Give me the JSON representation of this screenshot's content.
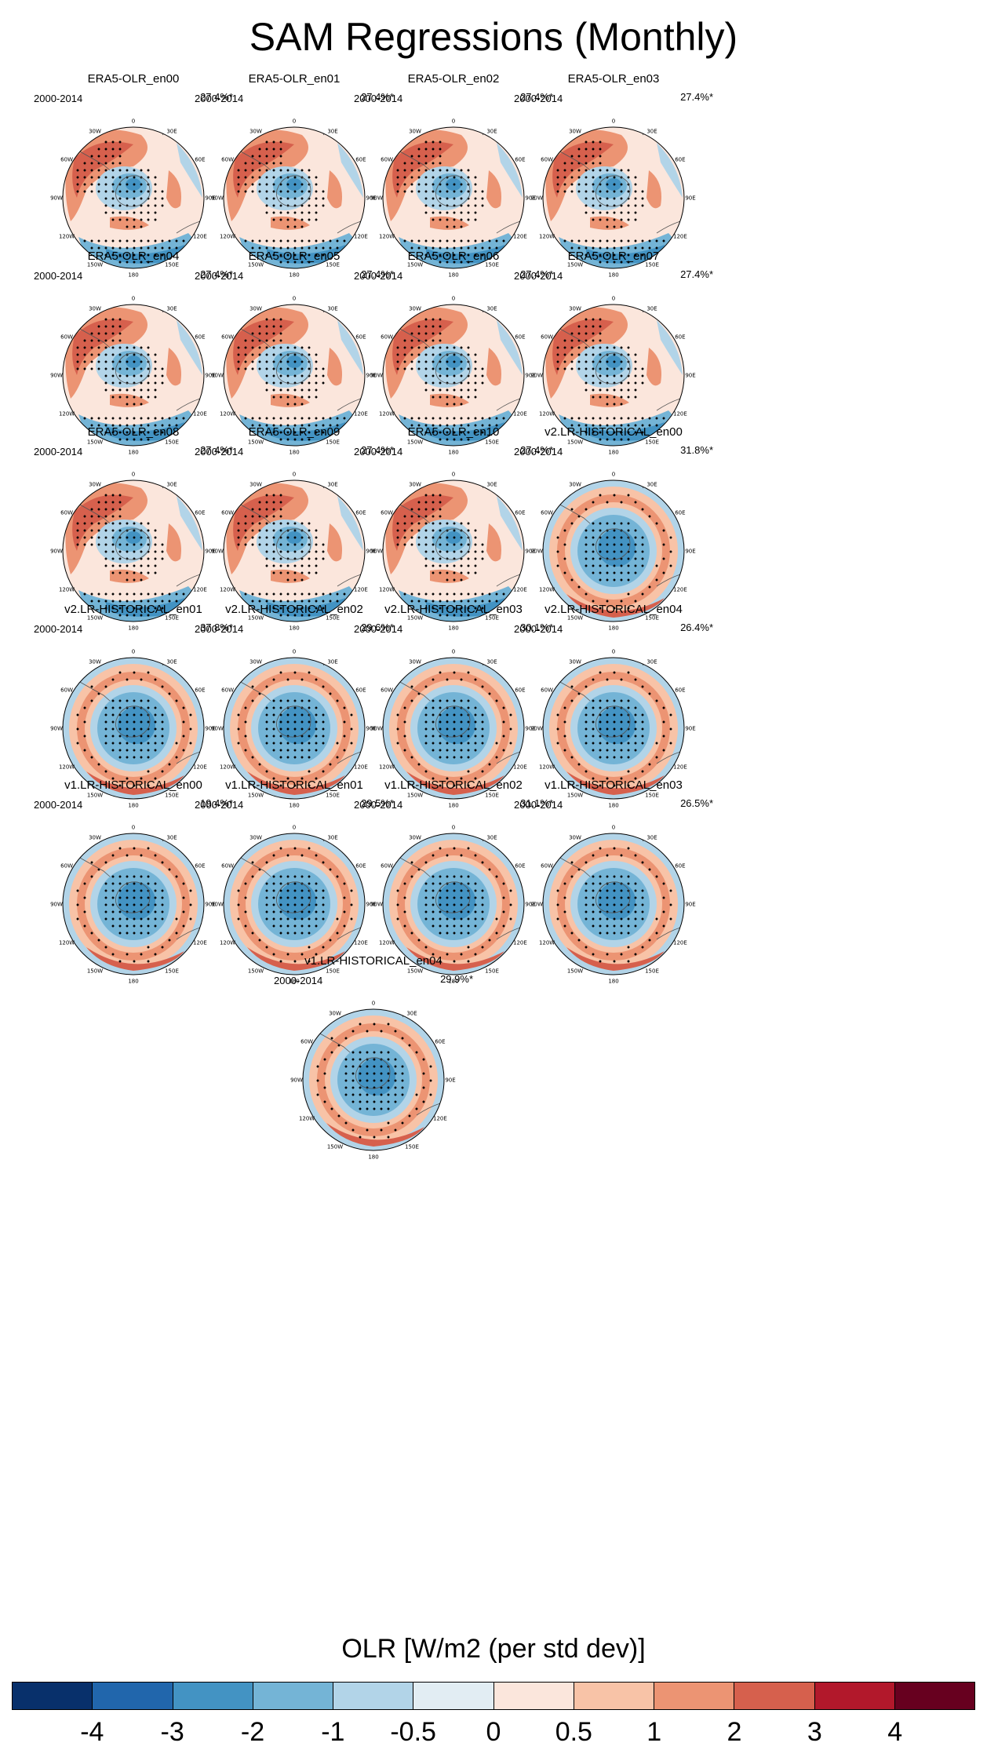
{
  "title": "SAM Regressions (Monthly)",
  "panels": [
    {
      "title": "ERA5-OLR_en00",
      "years": "2000-2014",
      "pct": "27.4%*",
      "model": "era5"
    },
    {
      "title": "ERA5-OLR_en01",
      "years": "2000-2014",
      "pct": "27.4%*",
      "model": "era5"
    },
    {
      "title": "ERA5-OLR_en02",
      "years": "2000-2014",
      "pct": "27.4%*",
      "model": "era5"
    },
    {
      "title": "ERA5-OLR_en03",
      "years": "2000-2014",
      "pct": "27.4%*",
      "model": "era5"
    },
    {
      "title": "ERA5-OLR_en04",
      "years": "2000-2014",
      "pct": "27.4%*",
      "model": "era5"
    },
    {
      "title": "ERA5-OLR_en05",
      "years": "2000-2014",
      "pct": "27.4%*",
      "model": "era5"
    },
    {
      "title": "ERA5-OLR_en06",
      "years": "2000-2014",
      "pct": "27.4%*",
      "model": "era5"
    },
    {
      "title": "ERA5-OLR_en07",
      "years": "2000-2014",
      "pct": "27.4%*",
      "model": "era5"
    },
    {
      "title": "ERA5-OLR_en08",
      "years": "2000-2014",
      "pct": "27.4%*",
      "model": "era5"
    },
    {
      "title": "ERA5-OLR_en09",
      "years": "2000-2014",
      "pct": "27.4%*",
      "model": "era5"
    },
    {
      "title": "ERA5-OLR_en10",
      "years": "2000-2014",
      "pct": "27.4%*",
      "model": "era5"
    },
    {
      "title": "v2.LR-HISTORICAL_en00",
      "years": "2000-2014",
      "pct": "31.8%*",
      "model": "model"
    },
    {
      "title": "v2.LR-HISTORICAL_en01",
      "years": "2000-2014",
      "pct": "37.8%*",
      "model": "model"
    },
    {
      "title": "v2.LR-HISTORICAL_en02",
      "years": "2000-2014",
      "pct": "29.6%*",
      "model": "model"
    },
    {
      "title": "v2.LR-HISTORICAL_en03",
      "years": "2000-2014",
      "pct": "30.1%*",
      "model": "model"
    },
    {
      "title": "v2.LR-HISTORICAL_en04",
      "years": "2000-2014",
      "pct": "26.4%*",
      "model": "model"
    },
    {
      "title": "v1.LR-HISTORICAL_en00",
      "years": "2000-2014",
      "pct": "19.4%*",
      "model": "model"
    },
    {
      "title": "v1.LR-HISTORICAL_en01",
      "years": "2000-2014",
      "pct": "29.5%*",
      "model": "model"
    },
    {
      "title": "v1.LR-HISTORICAL_en02",
      "years": "2000-2014",
      "pct": "31.1%*",
      "model": "model"
    },
    {
      "title": "v1.LR-HISTORICAL_en03",
      "years": "2000-2014",
      "pct": "26.5%*",
      "model": "model"
    },
    {
      "title": "v1.LR-HISTORICAL_en04",
      "years": "2000-2014",
      "pct": "29.9%*",
      "model": "model"
    }
  ],
  "lon_labels": [
    "0",
    "30E",
    "60E",
    "90E",
    "120E",
    "150E",
    "180",
    "150W",
    "120W",
    "90W",
    "60W",
    "30W"
  ],
  "colorbar": {
    "title": "OLR [W/m2 (per std dev)]",
    "labels": [
      "-4",
      "-3",
      "-2",
      "-1",
      "-0.5",
      "0",
      "0.5",
      "1",
      "2",
      "3",
      "4"
    ],
    "colors": [
      "#08306b",
      "#2166ac",
      "#4393c3",
      "#74b4d6",
      "#b2d4e8",
      "#e2edf3",
      "#fbe6dc",
      "#f8c3a7",
      "#ec9473",
      "#d6604d",
      "#b2182b",
      "#67001f"
    ]
  },
  "chart_data": {
    "type": "map",
    "projection": "south polar stereographic",
    "variable": "OLR [W/m2 (per std dev)]",
    "levels": [
      -4,
      -3,
      -2,
      -1,
      -0.5,
      0,
      0.5,
      1,
      2,
      3,
      4
    ],
    "stippling": "significance",
    "panels": [
      "ERA5-OLR_en00",
      "ERA5-OLR_en01",
      "ERA5-OLR_en02",
      "ERA5-OLR_en03",
      "ERA5-OLR_en04",
      "ERA5-OLR_en05",
      "ERA5-OLR_en06",
      "ERA5-OLR_en07",
      "ERA5-OLR_en08",
      "ERA5-OLR_en09",
      "ERA5-OLR_en10",
      "v2.LR-HISTORICAL_en00",
      "v2.LR-HISTORICAL_en01",
      "v2.LR-HISTORICAL_en02",
      "v2.LR-HISTORICAL_en03",
      "v2.LR-HISTORICAL_en04",
      "v1.LR-HISTORICAL_en00",
      "v1.LR-HISTORICAL_en01",
      "v1.LR-HISTORICAL_en02",
      "v1.LR-HISTORICAL_en03",
      "v1.LR-HISTORICAL_en04"
    ]
  }
}
